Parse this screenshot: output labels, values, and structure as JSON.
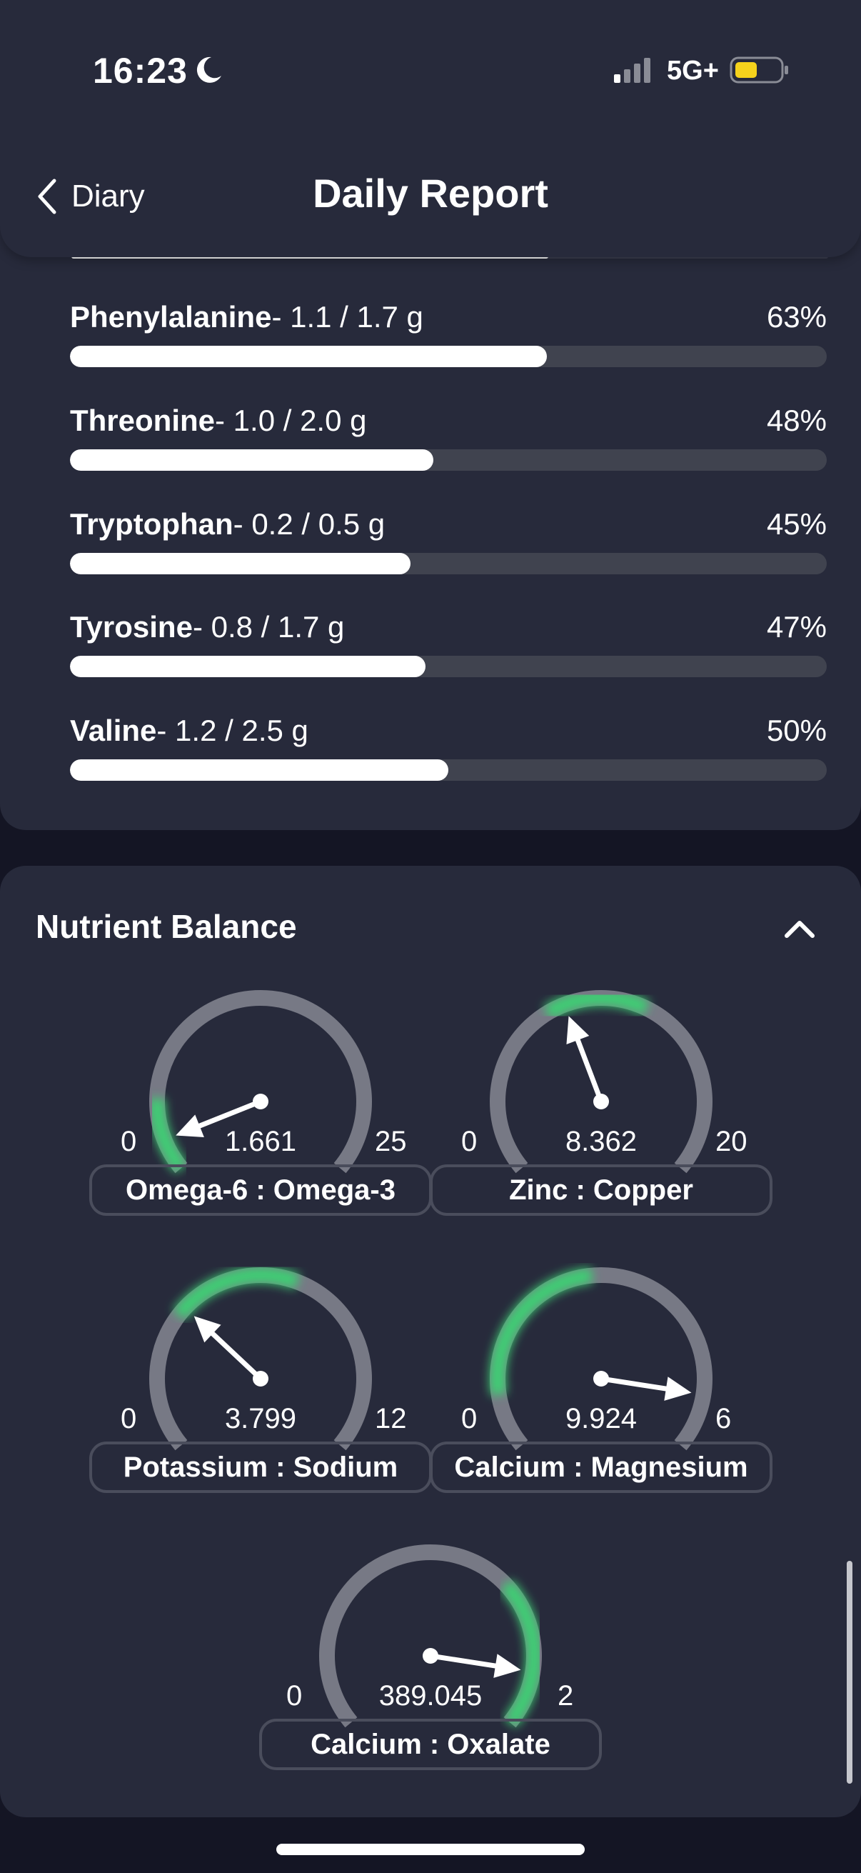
{
  "status_bar": {
    "time": "16:23",
    "network": "5G+",
    "icons": [
      "moon-icon",
      "signal-icon",
      "battery-icon"
    ]
  },
  "header": {
    "back_label": "Diary",
    "title": "Daily Report",
    "scroll_progress": 0.63
  },
  "amino_acids": [
    {
      "name": "Phenylalanine",
      "amount": "- 1.1 / 1.7 g",
      "percent_label": "63%",
      "fraction": 0.63
    },
    {
      "name": "Threonine",
      "amount": "- 1.0 / 2.0 g",
      "percent_label": "48%",
      "fraction": 0.48
    },
    {
      "name": "Tryptophan",
      "amount": "- 0.2 / 0.5 g",
      "percent_label": "45%",
      "fraction": 0.45
    },
    {
      "name": "Tyrosine",
      "amount": "- 0.8 / 1.7 g",
      "percent_label": "47%",
      "fraction": 0.47
    },
    {
      "name": "Valine",
      "amount": "- 1.2 / 2.5 g",
      "percent_label": "50%",
      "fraction": 0.5
    }
  ],
  "balance": {
    "title": "Nutrient Balance",
    "collapse_icon": "chevron-up-icon",
    "gauges": [
      {
        "label": "Omega-6 : Omega-3",
        "min": "0",
        "max": "25",
        "value": "1.661",
        "needle_fraction": 0.07,
        "optimal_range": [
          0.0,
          0.16
        ]
      },
      {
        "label": "Zinc : Copper",
        "min": "0",
        "max": "20",
        "value": "8.362",
        "needle_fraction": 0.42,
        "optimal_range": [
          0.38,
          0.6
        ]
      },
      {
        "label": "Potassium : Sodium",
        "min": "0",
        "max": "12",
        "value": "3.799",
        "needle_fraction": 0.32,
        "optimal_range": [
          0.3,
          0.58
        ]
      },
      {
        "label": "Calcium : Magnesium",
        "min": "0",
        "max": "6",
        "value": "9.924",
        "needle_fraction": 0.88,
        "optimal_range": [
          0.12,
          0.48
        ]
      },
      {
        "label": "Calcium : Oxalate",
        "min": "0",
        "max": "2",
        "value": "389.045",
        "needle_fraction": 0.88,
        "optimal_range": [
          0.68,
          1.0
        ]
      }
    ],
    "colors": {
      "track": "#777985",
      "optimal": "#3ecf73"
    }
  }
}
